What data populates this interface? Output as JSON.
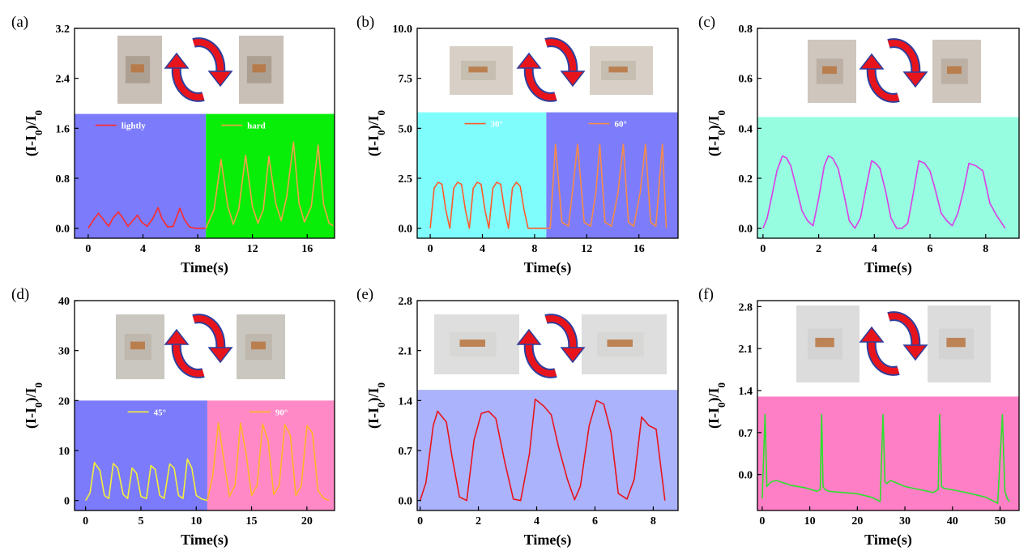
{
  "colors": {
    "arrow_red": "#e8141c",
    "arrow_blue": "#2e3f9e"
  },
  "chart_data": [
    {
      "panel": "(a)",
      "type": "line",
      "xlabel": "Time(s)",
      "ylabel": "(I-I0)/I0",
      "xlim": [
        -1,
        18
      ],
      "ylim": [
        -0.16,
        3.2
      ],
      "xticks": [
        0,
        4,
        8,
        12,
        16
      ],
      "xtick_labels": [
        "0",
        "4",
        "8",
        "12",
        "16"
      ],
      "yticks": [
        0,
        0.8,
        1.6,
        2.4,
        3.2
      ],
      "ytick_labels": [
        "0.0",
        "0.8",
        "1.6",
        "2.4",
        "3.2"
      ],
      "photos": [
        "finger-bending-photo",
        "finger-straight-photo"
      ],
      "backgrounds": [
        {
          "color": "#7b7bfb",
          "x_from": -1,
          "x_to": 8.6,
          "y_top": 1.83
        },
        {
          "color": "#08ee08",
          "x_from": 8.6,
          "x_to": 18,
          "y_top": 1.83
        }
      ],
      "series": [
        {
          "name": "lightly",
          "color": "#ff2a2a",
          "x": [
            0,
            0.4,
            0.75,
            1.1,
            1.5,
            1.8,
            2.2,
            2.6,
            2.9,
            3.3,
            3.6,
            3.9,
            4.3,
            4.7,
            5.1,
            5.4,
            5.8,
            6.2,
            6.7,
            7.0,
            7.4,
            7.8,
            8.6
          ],
          "y": [
            0.0,
            0.14,
            0.24,
            0.14,
            0.03,
            0.16,
            0.26,
            0.14,
            0.03,
            0.13,
            0.21,
            0.1,
            0.03,
            0.15,
            0.33,
            0.15,
            0.02,
            0.03,
            0.32,
            0.15,
            0.02,
            0.0,
            0.0
          ]
        },
        {
          "name": "hard",
          "color": "#f2a04a",
          "x": [
            8.6,
            9.2,
            9.7,
            10.2,
            10.6,
            11.0,
            11.5,
            12.0,
            12.4,
            12.8,
            13.2,
            13.7,
            14.1,
            14.5,
            15.0,
            15.4,
            15.8,
            16.3,
            16.8,
            17.2,
            17.6,
            17.9
          ],
          "y": [
            0.0,
            0.3,
            1.1,
            0.35,
            0.06,
            0.3,
            1.17,
            0.35,
            0.08,
            0.3,
            1.15,
            0.4,
            0.12,
            0.5,
            1.38,
            0.4,
            0.1,
            0.35,
            1.33,
            0.38,
            0.08,
            0.04
          ]
        }
      ],
      "legend": {
        "placement": "top",
        "entries": [
          {
            "label": "lightly",
            "x_data": 2.3
          },
          {
            "label": "hard",
            "x_data": 11.5
          }
        ]
      }
    },
    {
      "panel": "(b)",
      "type": "line",
      "xlabel": "Time(s)",
      "ylabel": "(I-I0)/I0",
      "xlim": [
        -1,
        19
      ],
      "ylim": [
        -0.5,
        10
      ],
      "xticks": [
        0,
        4,
        8,
        12,
        16
      ],
      "xtick_labels": [
        "0",
        "4",
        "8",
        "12",
        "16"
      ],
      "yticks": [
        0,
        2.5,
        5,
        7.5,
        10
      ],
      "ytick_labels": [
        "0.0",
        "2.5",
        "5.0",
        "7.5",
        "10.0"
      ],
      "photos": [
        "finger-30-degree-photo",
        "finger-60-degree-photo"
      ],
      "backgrounds": [
        {
          "color": "#7ffdfd",
          "x_from": -1,
          "x_to": 8.9,
          "y_top": 5.8
        },
        {
          "color": "#7d7dfb",
          "x_from": 8.9,
          "x_to": 19,
          "y_top": 5.8
        }
      ],
      "series": [
        {
          "name": "30°",
          "color": "#ff5a2a",
          "x": [
            0,
            0.3,
            0.6,
            0.9,
            1.2,
            1.5,
            1.8,
            2.1,
            2.4,
            2.7,
            3.0,
            3.3,
            3.6,
            3.9,
            4.2,
            4.5,
            4.8,
            5.1,
            5.4,
            5.7,
            6.0,
            6.3,
            6.6,
            6.9,
            7.2,
            7.5,
            7.8,
            8.1,
            8.9
          ],
          "y": [
            0.0,
            2.0,
            2.3,
            2.2,
            0.9,
            0.0,
            2.0,
            2.3,
            2.2,
            0.9,
            0.0,
            2.0,
            2.3,
            2.2,
            0.9,
            0.0,
            2.0,
            2.3,
            2.2,
            0.9,
            0.0,
            2.0,
            2.3,
            2.1,
            0.9,
            0.0,
            0.0,
            0.0,
            0.0
          ]
        },
        {
          "name": "60°",
          "color": "#f58a4a",
          "x": [
            8.9,
            9.2,
            9.6,
            10.1,
            10.6,
            10.9,
            11.3,
            11.8,
            12.3,
            12.7,
            13.0,
            13.4,
            13.9,
            14.4,
            14.8,
            15.2,
            15.6,
            16.1,
            16.5,
            16.9,
            17.3,
            17.8,
            18.1
          ],
          "y": [
            0.0,
            0.0,
            4.2,
            0.3,
            0.1,
            1.8,
            4.2,
            0.3,
            0.1,
            1.8,
            4.2,
            0.3,
            0.1,
            1.8,
            4.2,
            0.3,
            0.1,
            1.8,
            4.2,
            0.3,
            0.1,
            4.2,
            0.0
          ]
        }
      ],
      "legend": {
        "placement": "top",
        "entries": [
          {
            "label": "30°",
            "x_data": 4.5
          },
          {
            "label": "60°",
            "x_data": 14.0
          }
        ]
      }
    },
    {
      "panel": "(c)",
      "type": "line",
      "xlabel": "Time(s)",
      "ylabel": "(I-I0)/I0",
      "xlim": [
        -0.2,
        9.2
      ],
      "ylim": [
        -0.04,
        0.8
      ],
      "xticks": [
        0,
        2,
        4,
        6,
        8
      ],
      "xtick_labels": [
        "0",
        "2",
        "4",
        "6",
        "8"
      ],
      "yticks": [
        0,
        0.2,
        0.4,
        0.6,
        0.8
      ],
      "ytick_labels": [
        "0.0",
        "0.2",
        "0.4",
        "0.6",
        "0.8"
      ],
      "photos": [
        "wrist-bending-photo",
        "wrist-side-photo"
      ],
      "backgrounds": [
        {
          "color": "#97fde0",
          "x_from": -0.2,
          "x_to": 9.2,
          "y_top": 0.445
        }
      ],
      "series": [
        {
          "name": "",
          "color": "#d93ee6",
          "x": [
            0.0,
            0.15,
            0.3,
            0.5,
            0.7,
            0.85,
            1.0,
            1.2,
            1.4,
            1.6,
            1.8,
            2.0,
            2.2,
            2.35,
            2.5,
            2.7,
            2.9,
            3.1,
            3.3,
            3.5,
            3.7,
            3.9,
            4.05,
            4.2,
            4.4,
            4.6,
            4.8,
            5.0,
            5.2,
            5.4,
            5.6,
            5.8,
            6.0,
            6.2,
            6.4,
            6.6,
            6.8,
            7.0,
            7.2,
            7.4,
            7.65,
            7.9,
            8.15,
            8.4,
            8.7
          ],
          "y": [
            0.0,
            0.04,
            0.12,
            0.23,
            0.29,
            0.28,
            0.25,
            0.16,
            0.07,
            0.03,
            0.01,
            0.12,
            0.25,
            0.29,
            0.28,
            0.24,
            0.14,
            0.03,
            0.0,
            0.04,
            0.16,
            0.27,
            0.26,
            0.24,
            0.15,
            0.04,
            0.0,
            0.0,
            0.02,
            0.14,
            0.27,
            0.26,
            0.23,
            0.15,
            0.06,
            0.03,
            0.01,
            0.06,
            0.15,
            0.26,
            0.25,
            0.23,
            0.1,
            0.05,
            0.0
          ]
        }
      ]
    },
    {
      "panel": "(d)",
      "type": "line",
      "xlabel": "Time(s)",
      "ylabel": "(I-I0)/I0",
      "xlim": [
        -1,
        22.5
      ],
      "ylim": [
        -2,
        40
      ],
      "xticks": [
        0,
        5,
        10,
        15,
        20
      ],
      "xtick_labels": [
        "0",
        "5",
        "10",
        "15",
        "20"
      ],
      "yticks": [
        0,
        10,
        20,
        30,
        40
      ],
      "ytick_labels": [
        "0",
        "10",
        "20",
        "30",
        "40"
      ],
      "photos": [
        "elbow-45-degree-photo",
        "elbow-90-degree-photo"
      ],
      "backgrounds": [
        {
          "color": "#7b7bfb",
          "x_from": -1,
          "x_to": 11.0,
          "y_top": 20
        },
        {
          "color": "#ff88c6",
          "x_from": 11.0,
          "x_to": 22.5,
          "y_top": 20
        }
      ],
      "series": [
        {
          "name": "45°",
          "color": "#f5f03a",
          "x": [
            0,
            0.4,
            0.8,
            1.3,
            1.7,
            2.1,
            2.5,
            2.9,
            3.4,
            3.8,
            4.2,
            4.6,
            5.0,
            5.5,
            5.9,
            6.3,
            6.7,
            7.1,
            7.6,
            8.0,
            8.4,
            8.8,
            9.2,
            9.6,
            10.0,
            10.5,
            11.0
          ],
          "y": [
            0.0,
            1.5,
            7.6,
            6.0,
            1.0,
            0.4,
            7.4,
            6.5,
            1.2,
            0.4,
            6.5,
            5.5,
            0.8,
            0.4,
            7.0,
            6.2,
            1.0,
            0.4,
            7.3,
            6.5,
            1.0,
            0.4,
            8.3,
            6.5,
            1.0,
            0.3,
            0.0
          ]
        },
        {
          "name": "90°",
          "color": "#ffb62a",
          "x": [
            11.0,
            11.5,
            12.0,
            12.5,
            13.0,
            13.5,
            14.0,
            14.5,
            15.0,
            15.5,
            16.0,
            16.5,
            17.0,
            17.5,
            18.0,
            18.5,
            19.0,
            19.5,
            20.0,
            20.5,
            21.0,
            21.5,
            22.0
          ],
          "y": [
            0.0,
            5.0,
            15.5,
            8.0,
            0.8,
            3.0,
            15.5,
            9.5,
            1.0,
            3.0,
            15.3,
            12.0,
            1.2,
            3.0,
            15.2,
            13.0,
            1.0,
            3.0,
            15.0,
            13.5,
            2.0,
            0.5,
            0.0
          ]
        }
      ],
      "legend": {
        "placement": "top",
        "entries": [
          {
            "label": "45°",
            "x_data": 6.0
          },
          {
            "label": "90°",
            "x_data": 17.0
          }
        ]
      }
    },
    {
      "panel": "(e)",
      "type": "line",
      "xlabel": "Time(s)",
      "ylabel": "(I-I0)/I0",
      "xlim": [
        -0.1,
        8.85
      ],
      "ylim": [
        -0.14,
        2.8
      ],
      "xticks": [
        0,
        2,
        4,
        6,
        8
      ],
      "xtick_labels": [
        "0",
        "2",
        "4",
        "6",
        "8"
      ],
      "yticks": [
        0,
        0.7,
        1.4,
        2.1,
        2.8
      ],
      "ytick_labels": [
        "0.0",
        "0.7",
        "1.4",
        "2.1",
        "2.8"
      ],
      "photos": [
        "knee-bending-photo",
        "knee-straight-photo"
      ],
      "backgrounds": [
        {
          "color": "#abb3fd",
          "x_from": -0.1,
          "x_to": 8.85,
          "y_top": 1.55
        }
      ],
      "series": [
        {
          "name": "",
          "color": "#e8141c",
          "x": [
            0.0,
            0.2,
            0.45,
            0.6,
            0.9,
            1.1,
            1.35,
            1.6,
            1.85,
            2.1,
            2.35,
            2.6,
            2.9,
            3.2,
            3.45,
            3.75,
            3.95,
            4.25,
            4.5,
            4.75,
            5.05,
            5.3,
            5.5,
            5.8,
            6.05,
            6.3,
            6.55,
            6.8,
            7.1,
            7.35,
            7.6,
            7.85,
            8.1,
            8.4
          ],
          "y": [
            0.0,
            0.25,
            1.05,
            1.25,
            1.1,
            0.6,
            0.05,
            0.0,
            0.85,
            1.22,
            1.25,
            1.15,
            0.55,
            0.02,
            0.0,
            0.65,
            1.42,
            1.32,
            1.2,
            0.75,
            0.3,
            0.01,
            0.2,
            1.05,
            1.4,
            1.35,
            0.95,
            0.1,
            0.02,
            0.3,
            1.17,
            1.05,
            1.0,
            0.0
          ]
        }
      ]
    },
    {
      "panel": "(f)",
      "type": "line",
      "xlabel": "Time(s)",
      "ylabel": "(I-I0)/I0",
      "xlim": [
        -1,
        54
      ],
      "ylim": [
        -0.6,
        2.9
      ],
      "xticks": [
        0,
        10,
        20,
        30,
        40,
        50
      ],
      "xtick_labels": [
        "0",
        "10",
        "20",
        "30",
        "40",
        "50"
      ],
      "yticks": [
        0,
        0.7,
        1.4,
        2.1,
        2.8
      ],
      "ytick_labels": [
        "0.0",
        "0.7",
        "1.4",
        "2.1",
        "2.8"
      ],
      "photos": [
        "sensor-flat-photo",
        "sensor-folded-photo"
      ],
      "backgrounds": [
        {
          "color": "#ff7fc6",
          "x_from": -1,
          "x_to": 54,
          "y_top": 1.3
        }
      ],
      "series": [
        {
          "name": "",
          "color": "#2de02d",
          "x": [
            0.0,
            0.6,
            1.0,
            1.5,
            2.0,
            3.0,
            6.0,
            9.0,
            11.5,
            12.2,
            12.5,
            12.8,
            13.2,
            14.0,
            17.0,
            20.0,
            23.0,
            24.8,
            25.4,
            25.8,
            26.2,
            27.0,
            30.0,
            33.0,
            36.0,
            37.0,
            37.3,
            37.7,
            38.2,
            41.0,
            44.0,
            47.0,
            49.5,
            50.5,
            51.0,
            51.5,
            52.0
          ],
          "y": [
            -0.4,
            1.0,
            -0.2,
            -0.15,
            -0.12,
            -0.1,
            -0.18,
            -0.22,
            -0.28,
            -0.25,
            1.0,
            -0.2,
            -0.25,
            -0.28,
            -0.3,
            -0.32,
            -0.38,
            -0.45,
            1.0,
            -0.12,
            -0.15,
            -0.1,
            -0.2,
            -0.25,
            -0.3,
            -0.25,
            1.0,
            -0.2,
            -0.23,
            -0.27,
            -0.32,
            -0.38,
            -0.48,
            1.0,
            -0.28,
            -0.4,
            -0.45
          ]
        }
      ]
    }
  ]
}
